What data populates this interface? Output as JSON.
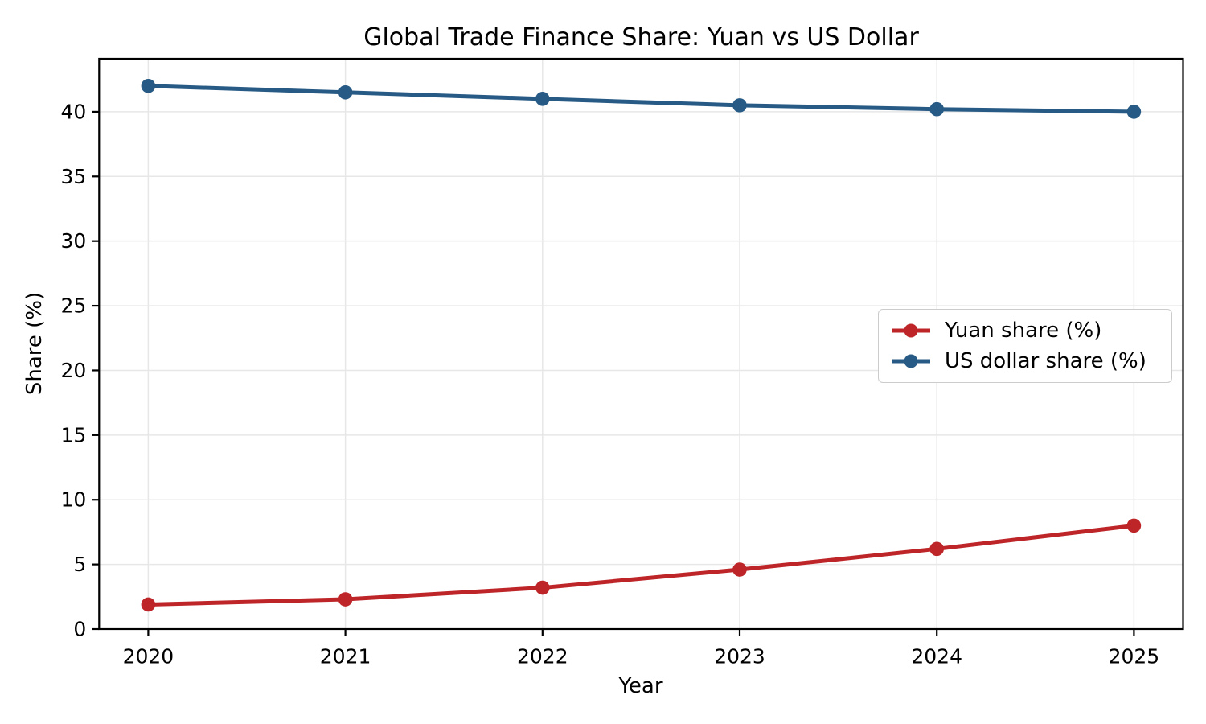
{
  "chart_data": {
    "type": "line",
    "title": "Global Trade Finance Share: Yuan vs US Dollar",
    "xlabel": "Year",
    "ylabel": "Share (%)",
    "x_ticklabels": [
      "2020",
      "2021",
      "2022",
      "2023",
      "2024",
      "2025"
    ],
    "y_ticks": [
      0,
      5,
      10,
      15,
      20,
      25,
      30,
      35,
      40
    ],
    "ylim": [
      0,
      44.1
    ],
    "grid": true,
    "legend_position": "center-right",
    "series": [
      {
        "name": "Yuan share (%)",
        "color": "#be2528",
        "values": [
          1.9,
          2.3,
          3.2,
          4.6,
          6.2,
          8.0
        ]
      },
      {
        "name": "US dollar share (%)",
        "color": "#275a85",
        "values": [
          42.0,
          41.5,
          41.0,
          40.5,
          40.2,
          40.0
        ]
      }
    ]
  },
  "colors": {
    "grid": "#e7e7e7",
    "spine": "#000000",
    "legend_border": "#cccccc",
    "background": "#ffffff"
  }
}
